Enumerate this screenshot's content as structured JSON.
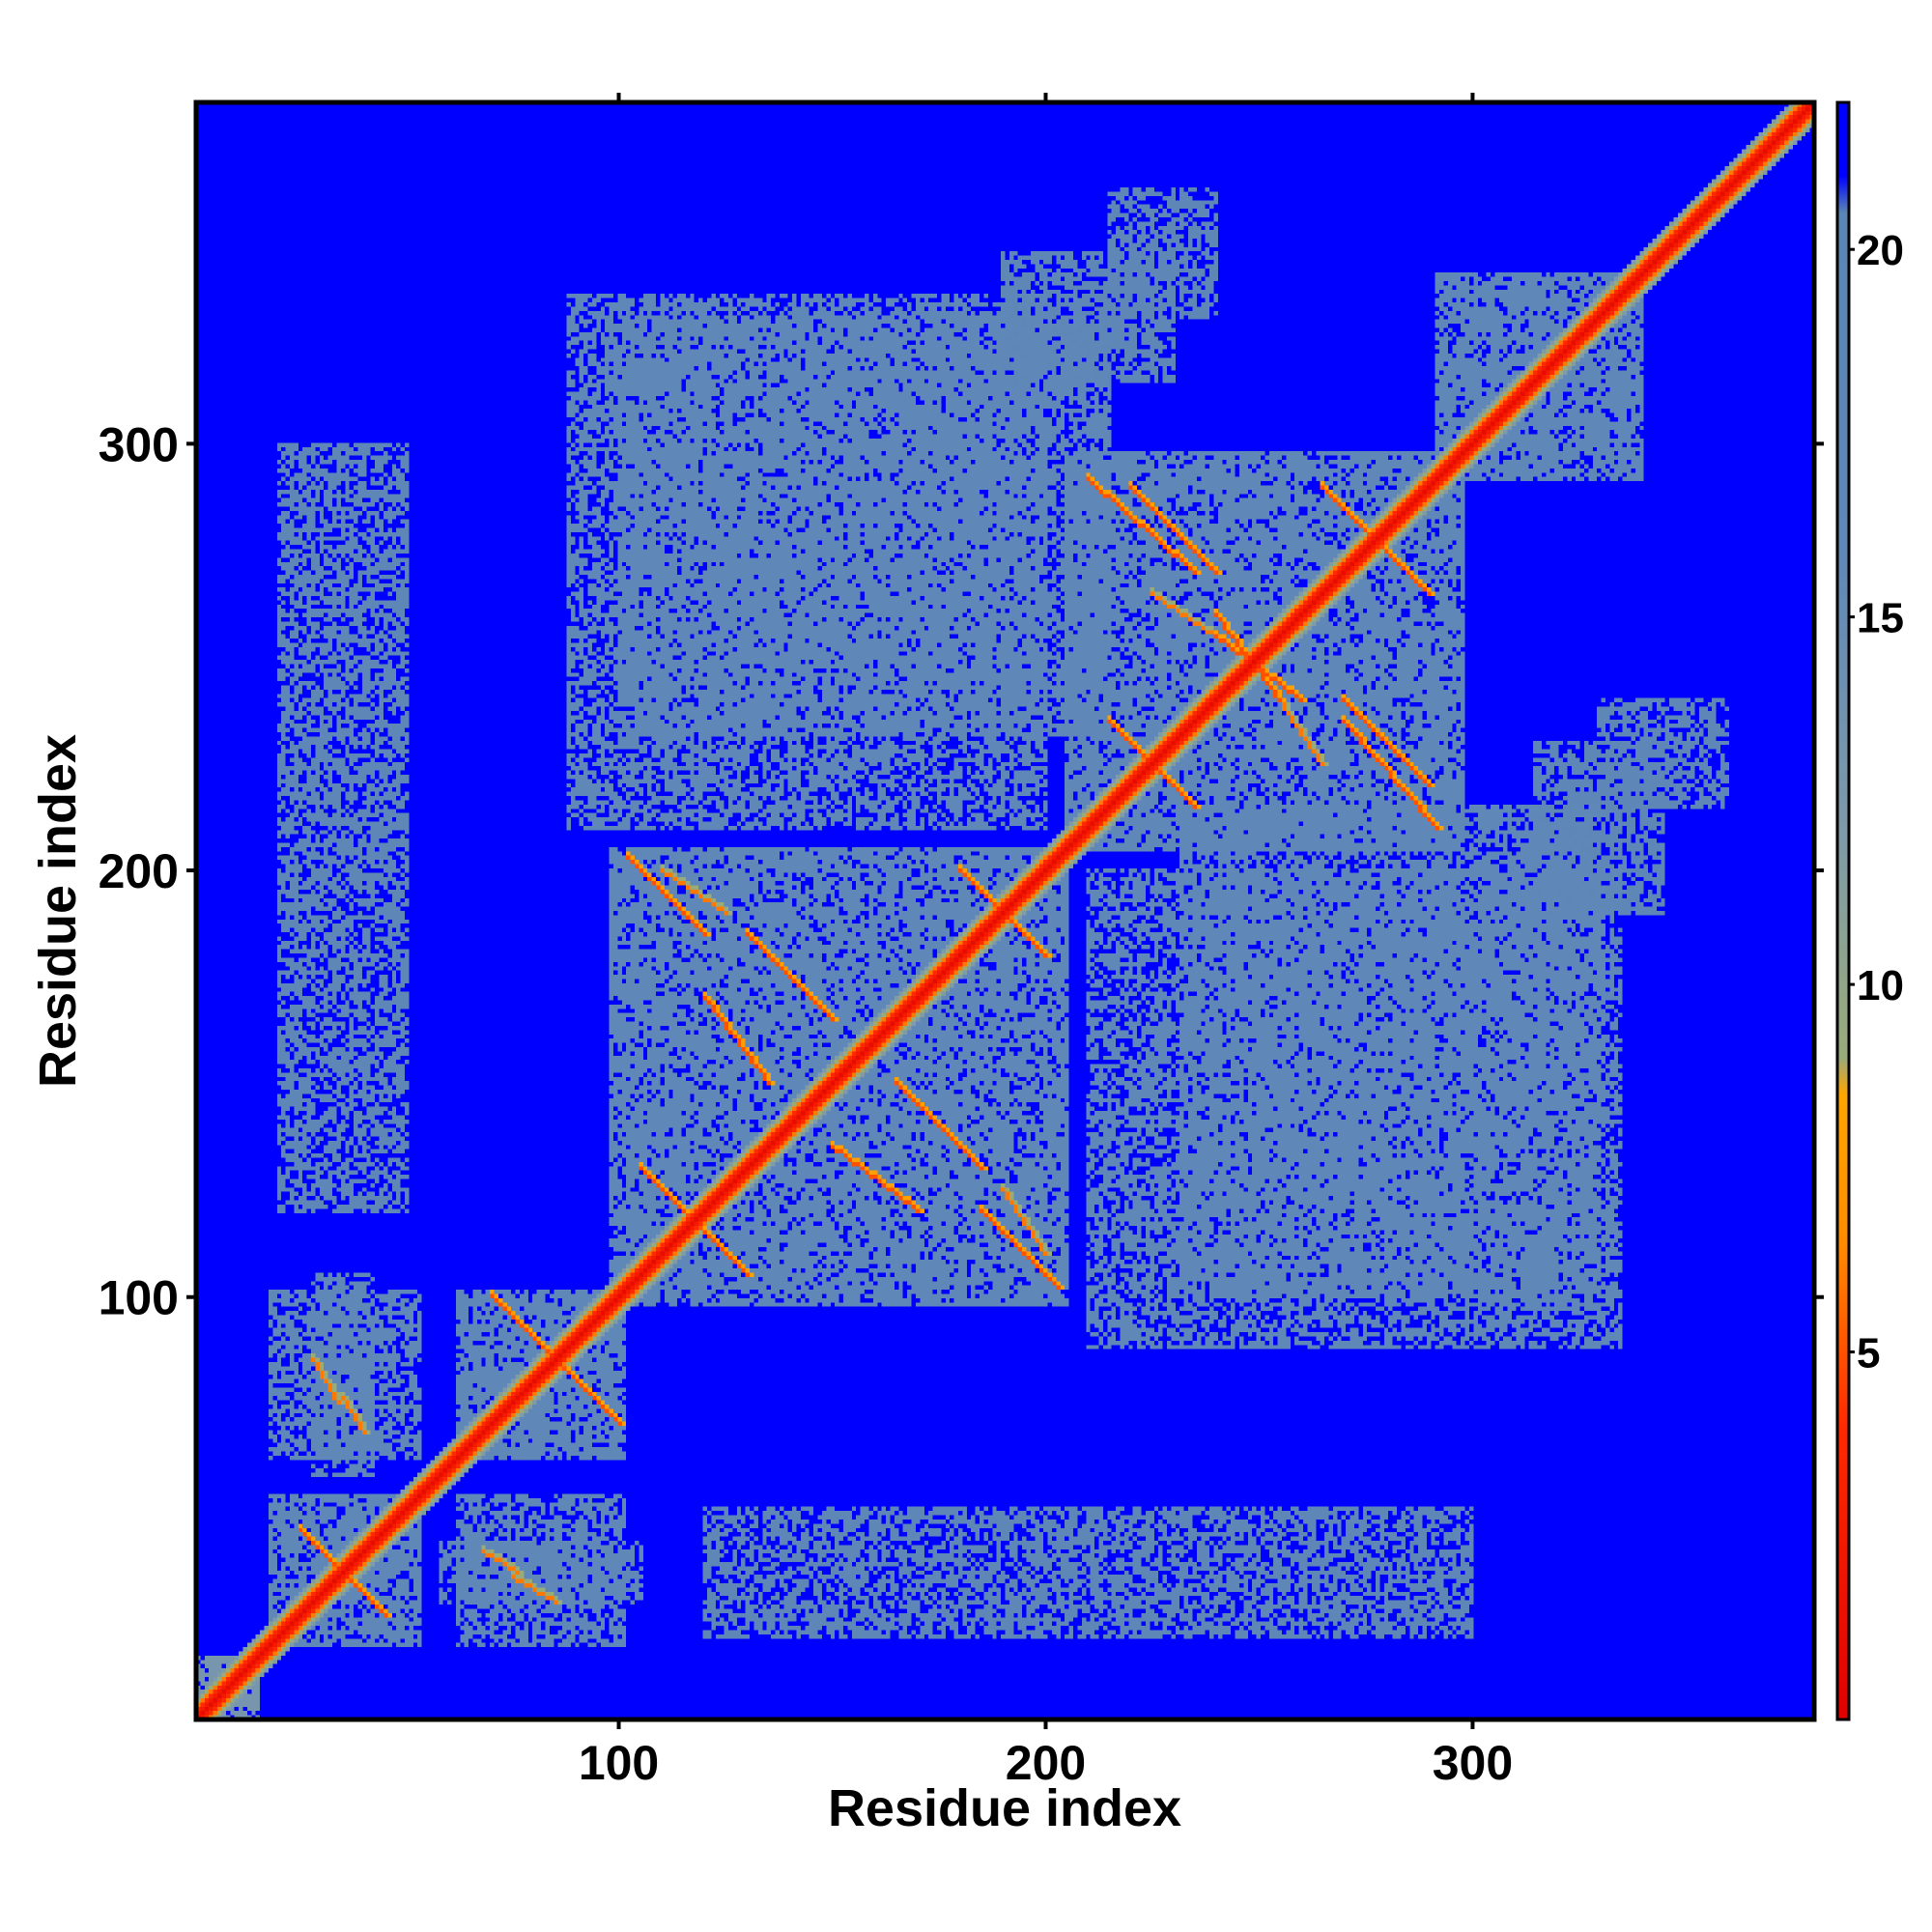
{
  "chart_data": {
    "type": "heatmap",
    "title": "",
    "xlabel": "Residue index",
    "ylabel": "Residue index",
    "xlim": [
      1,
      380
    ],
    "ylim": [
      1,
      380
    ],
    "x_ticks": [
      100,
      200,
      300
    ],
    "y_ticks": [
      100,
      200,
      300
    ],
    "colorbar": {
      "ticks": [
        5,
        10,
        15,
        20
      ],
      "range": [
        0,
        22
      ],
      "stops": [
        {
          "value": 0,
          "color": "#e00000"
        },
        {
          "value": 4,
          "color": "#ff2a00"
        },
        {
          "value": 6.5,
          "color": "#ff8c00"
        },
        {
          "value": 8.5,
          "color": "#ffa500"
        },
        {
          "value": 9,
          "color": "#9aab7a"
        },
        {
          "value": 12,
          "color": "#7f9aa8"
        },
        {
          "value": 16,
          "color": "#5f87b7"
        },
        {
          "value": 20.5,
          "color": "#5a85b5"
        },
        {
          "value": 21,
          "color": "#0000ff"
        },
        {
          "value": 22,
          "color": "#0000ff"
        }
      ]
    },
    "background_value": 22,
    "diagonal_value": 1,
    "matrix_size": 380,
    "symmetric": true,
    "contact_blocks": [
      {
        "from": 1,
        "to": 15,
        "value": 13
      },
      {
        "from": 18,
        "to": 53,
        "value": 16
      },
      {
        "from": 62,
        "to": 101,
        "value": 16
      },
      {
        "from": 98,
        "to": 205,
        "value": 16
      },
      {
        "from": 205,
        "to": 298,
        "value": 16
      },
      {
        "from": 292,
        "to": 340,
        "value": 16
      }
    ],
    "offdiagonal_regions": [
      {
        "x": [
          58,
          105
        ],
        "y": [
          28,
          42
        ],
        "value": 16
      },
      {
        "x": [
          18,
          53
        ],
        "y": [
          62,
          101
        ],
        "value": 16
      },
      {
        "x": [
          100,
          215
        ],
        "y": [
          232,
          330
        ],
        "value": 16
      },
      {
        "x": [
          210,
          335
        ],
        "y": [
          88,
          200
        ],
        "value": 16
      },
      {
        "x": [
          20,
          50
        ],
        "y": [
          120,
          300
        ],
        "value": 17
      },
      {
        "x": [
          190,
          230
        ],
        "y": [
          315,
          345
        ],
        "value": 17
      },
      {
        "x": [
          330,
          360
        ],
        "y": [
          215,
          240
        ],
        "value": 17
      }
    ],
    "contact_lines": [
      {
        "x": [
          25,
          45
        ],
        "y": [
          45,
          25
        ],
        "value": 5
      },
      {
        "x": [
          70,
          95
        ],
        "y": [
          100,
          75
        ],
        "value": 5
      },
      {
        "x": [
          105,
          130
        ],
        "y": [
          130,
          105
        ],
        "value": 5
      },
      {
        "x": [
          130,
          150
        ],
        "y": [
          185,
          165
        ],
        "value": 5
      },
      {
        "x": [
          180,
          200
        ],
        "y": [
          200,
          180
        ],
        "value": 5
      },
      {
        "x": [
          150,
          170
        ],
        "y": [
          135,
          120
        ],
        "value": 5
      },
      {
        "x": [
          185,
          203
        ],
        "y": [
          120,
          102
        ],
        "value": 5
      },
      {
        "x": [
          220,
          240
        ],
        "y": [
          290,
          270
        ],
        "value": 5
      },
      {
        "x": [
          215,
          235
        ],
        "y": [
          235,
          215
        ],
        "value": 5
      },
      {
        "x": [
          265,
          285
        ],
        "y": [
          290,
          270
        ],
        "value": 5
      },
      {
        "x": [
          270,
          292
        ],
        "y": [
          235,
          210
        ],
        "value": 5
      },
      {
        "x": [
          240,
          260
        ],
        "y": [
          255,
          240
        ],
        "value": 5
      },
      {
        "x": [
          110,
          125
        ],
        "y": [
          200,
          190
        ],
        "value": 6
      },
      {
        "x": [
          225,
          240
        ],
        "y": [
          265,
          255
        ],
        "value": 6
      },
      {
        "x": [
          75,
          85
        ],
        "y": [
          34,
          28
        ],
        "value": 6
      },
      {
        "x": [
          35,
          40
        ],
        "y": [
          76,
          68
        ],
        "value": 6
      }
    ]
  }
}
